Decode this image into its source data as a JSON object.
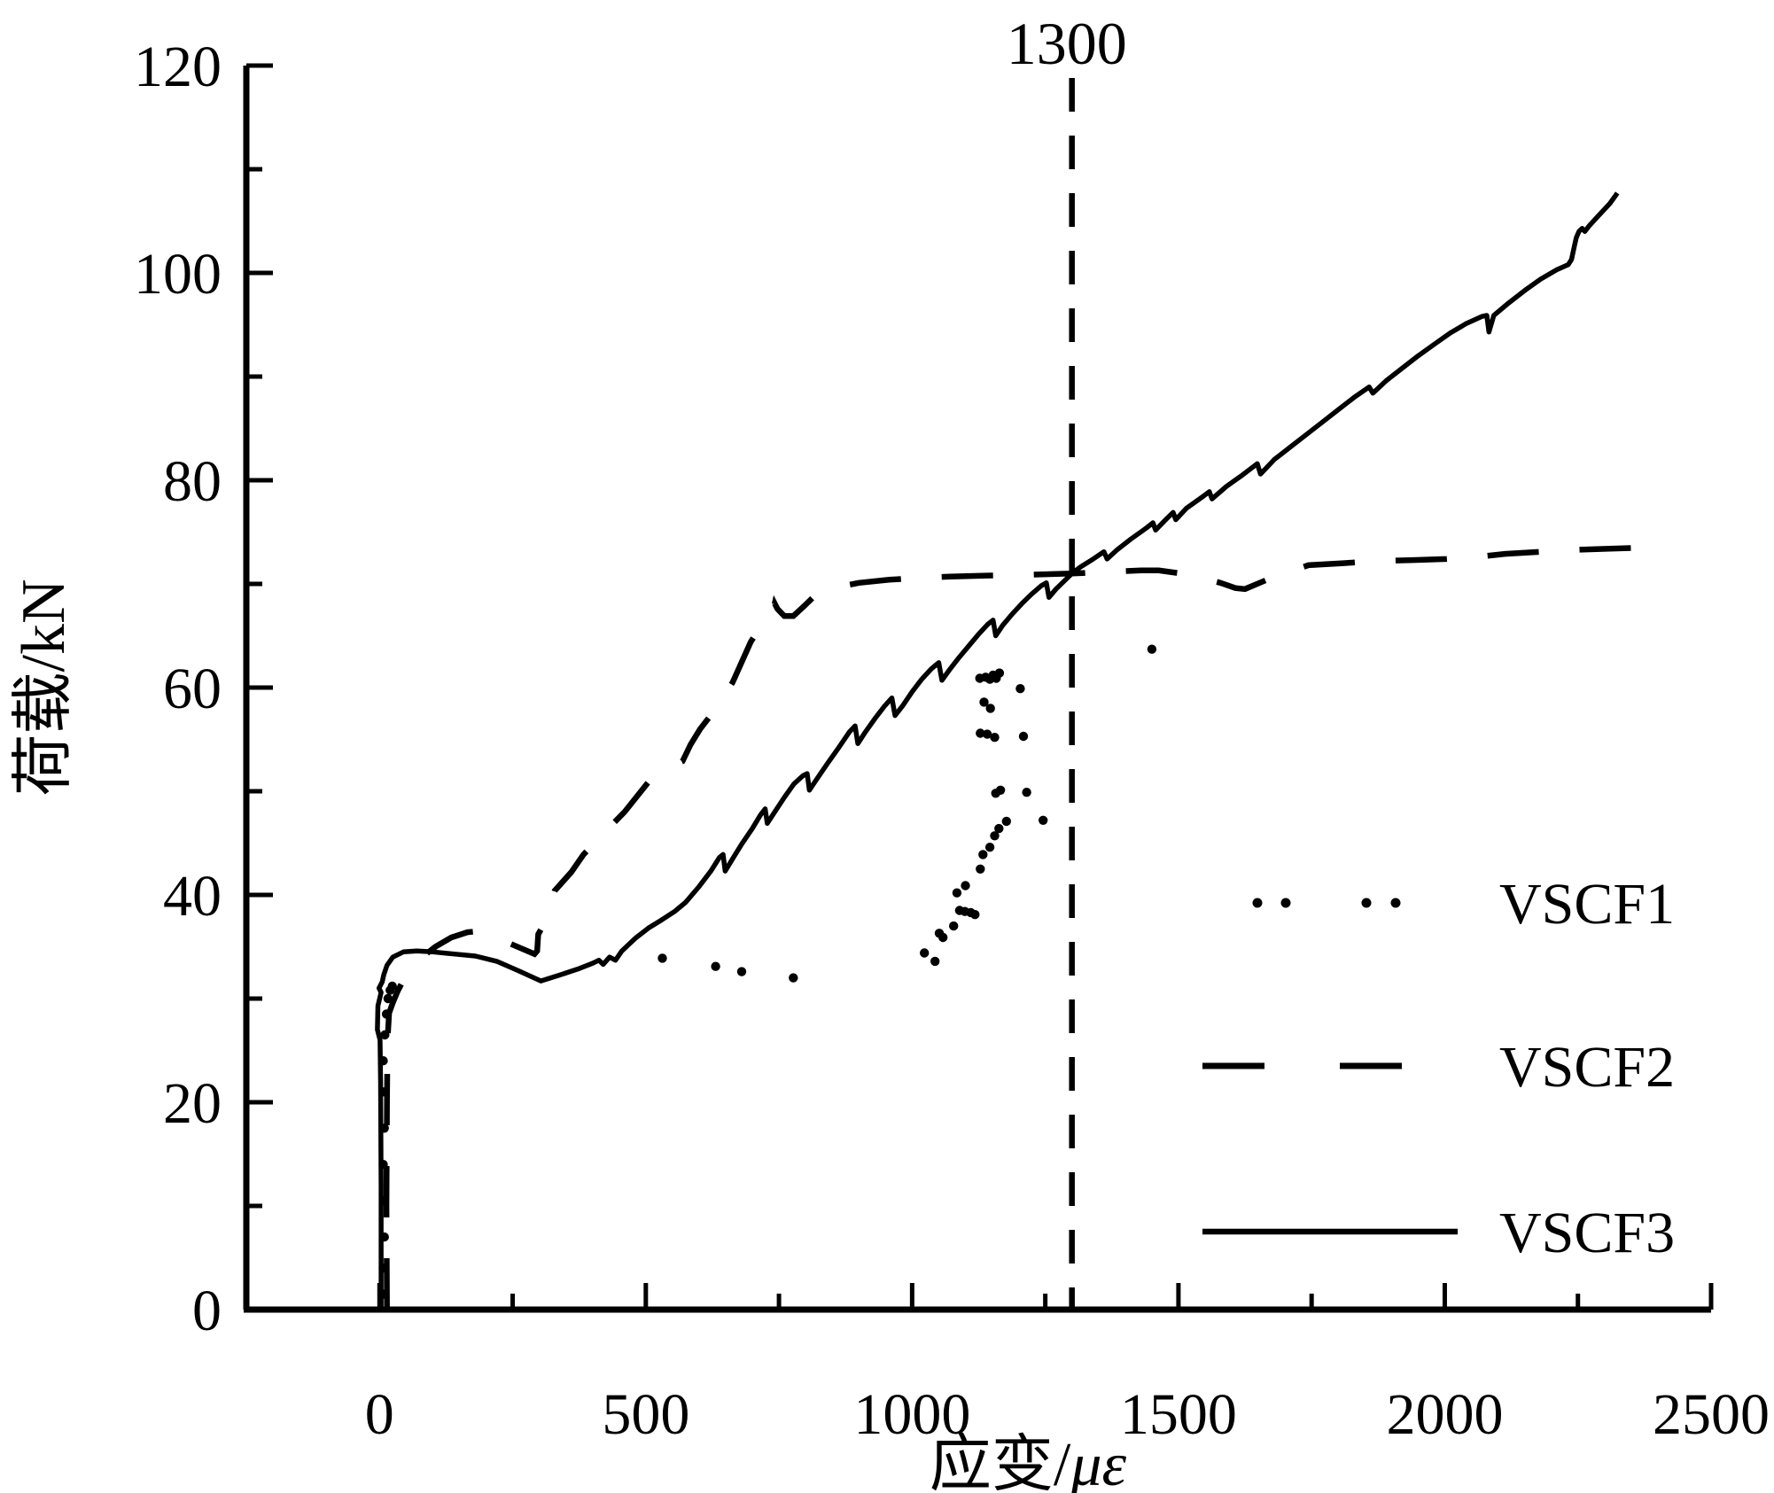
{
  "figure": {
    "background": "#ffffff",
    "ink_color": "#000000"
  },
  "chart_data": {
    "type": "line",
    "title": "",
    "xlabel_main": "应变/",
    "xlabel_italic": "με",
    "ylabel": "荷载/kN",
    "xlim": [
      -250,
      2500
    ],
    "ylim": [
      0,
      120
    ],
    "grid": false,
    "legend_position": "lower right inside",
    "x_ticks": {
      "major_values": [
        0,
        500,
        1000,
        1500,
        2000,
        2500
      ],
      "major_labels": [
        "0",
        "500",
        "1000",
        "1500",
        "2000",
        "2500"
      ],
      "minor_values": [
        250,
        750,
        1250,
        1750,
        2250
      ]
    },
    "y_ticks": {
      "major_values": [
        0,
        20,
        40,
        60,
        80,
        100,
        120
      ],
      "major_labels": [
        "0",
        "20",
        "40",
        "60",
        "80",
        "100",
        "120"
      ],
      "minor_values": [
        10,
        30,
        50,
        70,
        90,
        110
      ]
    },
    "annotation": {
      "text": "1300",
      "x": 1300,
      "style": "vertical dashed line, label at top"
    },
    "series": [
      {
        "name": "VSCF1",
        "style": "dotted",
        "points": [
          [
            8,
            1.5
          ],
          [
            7,
            4
          ],
          [
            9,
            7
          ],
          [
            8,
            10.5
          ],
          [
            7,
            14
          ],
          [
            9,
            17.5
          ],
          [
            8,
            21
          ],
          [
            7,
            24
          ],
          [
            10,
            26.5
          ],
          [
            13,
            28.5
          ],
          [
            16,
            30
          ],
          [
            20,
            30.8
          ],
          [
            24,
            31.2
          ],
          [
            531,
            33.9
          ],
          [
            631,
            33.1
          ],
          [
            680,
            32.6
          ],
          [
            777,
            32.0
          ],
          [
            1023,
            34.4
          ],
          [
            1043,
            33.6
          ],
          [
            1051,
            36.3
          ],
          [
            1058,
            35.9
          ],
          [
            1078,
            37.0
          ],
          [
            1089,
            38.5
          ],
          [
            1099,
            38.4
          ],
          [
            1110,
            38.3
          ],
          [
            1118,
            38.1
          ],
          [
            1084,
            40.2
          ],
          [
            1100,
            40.9
          ],
          [
            1128,
            42.5
          ],
          [
            1133,
            43.9
          ],
          [
            1146,
            44.6
          ],
          [
            1155,
            45.7
          ],
          [
            1163,
            46.4
          ],
          [
            1177,
            47.1
          ],
          [
            1157,
            49.8
          ],
          [
            1166,
            50.1
          ],
          [
            1155,
            55.2
          ],
          [
            1128,
            55.6
          ],
          [
            1141,
            55.5
          ],
          [
            1135,
            58.6
          ],
          [
            1147,
            58.0
          ],
          [
            1127,
            60.9
          ],
          [
            1138,
            61.0
          ],
          [
            1146,
            60.8
          ],
          [
            1152,
            61.2
          ],
          [
            1158,
            60.9
          ],
          [
            1164,
            61.4
          ],
          [
            1203,
            59.9
          ],
          [
            1209,
            55.3
          ],
          [
            1215,
            49.9
          ],
          [
            1246,
            47.2
          ],
          [
            1450,
            63.7
          ]
        ]
      },
      {
        "name": "VSCF2",
        "style": "dashed",
        "points": [
          [
            14,
            0
          ],
          [
            13,
            10
          ],
          [
            14,
            20
          ],
          [
            15,
            26
          ],
          [
            18,
            28.6
          ],
          [
            25,
            29.6
          ],
          [
            34,
            30.7
          ],
          [
            45,
            31.8
          ],
          [
            60,
            32.9
          ],
          [
            80,
            34.0
          ],
          [
            105,
            35.0
          ],
          [
            135,
            35.9
          ],
          [
            165,
            36.4
          ],
          [
            186,
            36.5
          ],
          [
            215,
            36.0
          ],
          [
            250,
            35.2
          ],
          [
            291,
            34.3
          ],
          [
            296,
            34.6
          ],
          [
            298,
            36.2
          ],
          [
            310,
            37.3
          ],
          [
            329,
            40.4
          ],
          [
            360,
            42.2
          ],
          [
            383,
            43.9
          ],
          [
            420,
            45.9
          ],
          [
            460,
            48.0
          ],
          [
            516,
            51.6
          ],
          [
            569,
            52.9
          ],
          [
            584,
            54.5
          ],
          [
            602,
            56.0
          ],
          [
            632,
            58.0
          ],
          [
            663,
            60.5
          ],
          [
            697,
            64.4
          ],
          [
            728,
            66.9
          ],
          [
            739,
            67.4
          ],
          [
            742,
            68.1
          ],
          [
            747,
            67.6
          ],
          [
            760,
            66.9
          ],
          [
            777,
            66.9
          ],
          [
            798,
            67.9
          ],
          [
            818,
            68.9
          ],
          [
            850,
            69.6
          ],
          [
            900,
            70.1
          ],
          [
            957,
            70.4
          ],
          [
            1020,
            70.6
          ],
          [
            1071,
            70.7
          ],
          [
            1140,
            70.8
          ],
          [
            1228,
            70.9
          ],
          [
            1300,
            71.0
          ],
          [
            1380,
            71.2
          ],
          [
            1430,
            71.3
          ],
          [
            1463,
            71.3
          ],
          [
            1520,
            70.9
          ],
          [
            1579,
            70.1
          ],
          [
            1607,
            69.6
          ],
          [
            1625,
            69.5
          ],
          [
            1680,
            70.7
          ],
          [
            1744,
            71.8
          ],
          [
            1810,
            72.0
          ],
          [
            1867,
            72.2
          ],
          [
            1940,
            72.3
          ],
          [
            2003,
            72.4
          ],
          [
            2060,
            72.6
          ],
          [
            2113,
            72.9
          ],
          [
            2180,
            73.1
          ],
          [
            2250,
            73.3
          ],
          [
            2310,
            73.4
          ],
          [
            2373,
            73.5
          ]
        ]
      },
      {
        "name": "VSCF3",
        "style": "solid",
        "points": [
          [
            3,
            0
          ],
          [
            3,
            12
          ],
          [
            2,
            22
          ],
          [
            1,
            26
          ],
          [
            -4,
            27
          ],
          [
            -3,
            29.3
          ],
          [
            3,
            30.6
          ],
          [
            -1,
            31.0
          ],
          [
            5,
            31.6
          ],
          [
            8,
            32.3
          ],
          [
            14,
            33.2
          ],
          [
            25,
            34.0
          ],
          [
            45,
            34.5
          ],
          [
            70,
            34.6
          ],
          [
            100,
            34.5
          ],
          [
            140,
            34.3
          ],
          [
            180,
            34.1
          ],
          [
            220,
            33.6
          ],
          [
            260,
            32.7
          ],
          [
            303,
            31.7
          ],
          [
            340,
            32.3
          ],
          [
            375,
            32.9
          ],
          [
            400,
            33.4
          ],
          [
            412,
            33.7
          ],
          [
            420,
            33.3
          ],
          [
            432,
            34.0
          ],
          [
            443,
            33.7
          ],
          [
            455,
            34.6
          ],
          [
            480,
            35.8
          ],
          [
            505,
            36.8
          ],
          [
            530,
            37.6
          ],
          [
            554,
            38.4
          ],
          [
            575,
            39.3
          ],
          [
            600,
            40.8
          ],
          [
            622,
            42.3
          ],
          [
            638,
            43.6
          ],
          [
            645,
            43.9
          ],
          [
            649,
            42.3
          ],
          [
            662,
            43.4
          ],
          [
            680,
            44.9
          ],
          [
            700,
            46.4
          ],
          [
            715,
            47.7
          ],
          [
            724,
            48.3
          ],
          [
            728,
            46.9
          ],
          [
            742,
            48.0
          ],
          [
            760,
            49.4
          ],
          [
            778,
            50.7
          ],
          [
            795,
            51.5
          ],
          [
            803,
            51.7
          ],
          [
            807,
            50.1
          ],
          [
            820,
            51.1
          ],
          [
            840,
            52.6
          ],
          [
            862,
            54.2
          ],
          [
            882,
            55.7
          ],
          [
            893,
            56.3
          ],
          [
            898,
            54.6
          ],
          [
            912,
            55.7
          ],
          [
            930,
            57.0
          ],
          [
            948,
            58.2
          ],
          [
            962,
            59.0
          ],
          [
            968,
            57.3
          ],
          [
            983,
            58.3
          ],
          [
            1000,
            59.6
          ],
          [
            1018,
            60.8
          ],
          [
            1036,
            61.8
          ],
          [
            1050,
            62.4
          ],
          [
            1056,
            60.7
          ],
          [
            1070,
            61.7
          ],
          [
            1088,
            62.9
          ],
          [
            1106,
            64.0
          ],
          [
            1124,
            65.1
          ],
          [
            1142,
            66.1
          ],
          [
            1152,
            66.5
          ],
          [
            1157,
            65.0
          ],
          [
            1170,
            66.0
          ],
          [
            1188,
            67.1
          ],
          [
            1206,
            68.1
          ],
          [
            1224,
            69.0
          ],
          [
            1242,
            69.8
          ],
          [
            1252,
            70.1
          ],
          [
            1257,
            68.7
          ],
          [
            1270,
            69.5
          ],
          [
            1288,
            70.4
          ],
          [
            1300,
            71.0
          ],
          [
            1315,
            71.6
          ],
          [
            1340,
            72.4
          ],
          [
            1360,
            73.1
          ],
          [
            1366,
            72.4
          ],
          [
            1385,
            73.3
          ],
          [
            1410,
            74.3
          ],
          [
            1440,
            75.4
          ],
          [
            1452,
            75.9
          ],
          [
            1457,
            75.2
          ],
          [
            1478,
            76.3
          ],
          [
            1490,
            76.9
          ],
          [
            1495,
            76.2
          ],
          [
            1515,
            77.3
          ],
          [
            1545,
            78.4
          ],
          [
            1558,
            78.9
          ],
          [
            1563,
            78.2
          ],
          [
            1590,
            79.4
          ],
          [
            1620,
            80.5
          ],
          [
            1648,
            81.6
          ],
          [
            1654,
            80.6
          ],
          [
            1680,
            82.0
          ],
          [
            1710,
            83.2
          ],
          [
            1740,
            84.4
          ],
          [
            1770,
            85.6
          ],
          [
            1800,
            86.8
          ],
          [
            1830,
            88.0
          ],
          [
            1858,
            89.0
          ],
          [
            1865,
            88.4
          ],
          [
            1890,
            89.6
          ],
          [
            1920,
            90.8
          ],
          [
            1950,
            92.0
          ],
          [
            1980,
            93.1
          ],
          [
            2010,
            94.2
          ],
          [
            2040,
            95.1
          ],
          [
            2070,
            95.8
          ],
          [
            2079,
            95.9
          ],
          [
            2083,
            94.3
          ],
          [
            2092,
            95.9
          ],
          [
            2120,
            97.1
          ],
          [
            2150,
            98.3
          ],
          [
            2180,
            99.4
          ],
          [
            2210,
            100.3
          ],
          [
            2232,
            100.8
          ],
          [
            2238,
            101.3
          ],
          [
            2243,
            102.5
          ],
          [
            2247,
            103.4
          ],
          [
            2252,
            104.0
          ],
          [
            2258,
            104.3
          ],
          [
            2263,
            104.0
          ],
          [
            2272,
            104.6
          ],
          [
            2290,
            105.6
          ],
          [
            2310,
            106.7
          ],
          [
            2324,
            107.7
          ]
        ]
      }
    ],
    "legend": [
      {
        "label": "VSCF1",
        "marker": "dotted"
      },
      {
        "label": "VSCF2",
        "marker": "dashed"
      },
      {
        "label": "VSCF3",
        "marker": "solid"
      }
    ]
  }
}
